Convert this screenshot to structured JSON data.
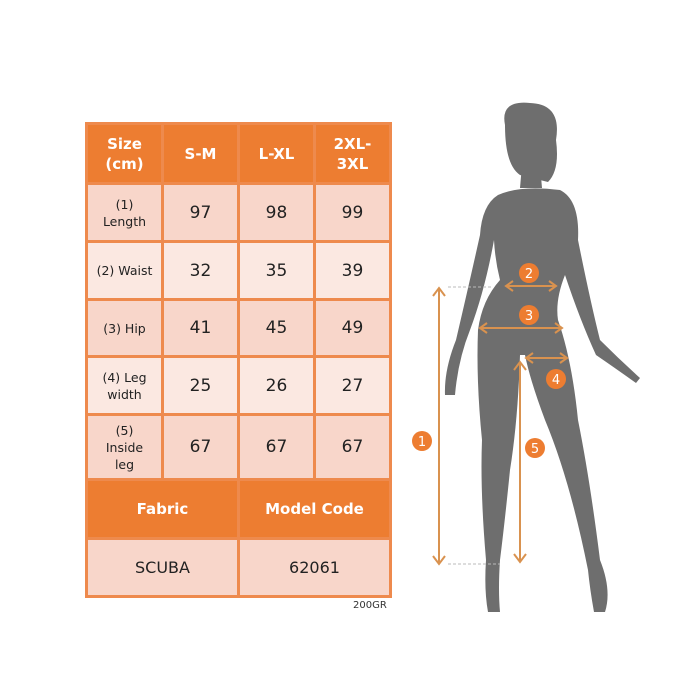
{
  "table": {
    "header": [
      "Size\n(cm)",
      "S-M",
      "L-XL",
      "2XL-\n3XL"
    ],
    "rows": [
      {
        "label": "(1)\nLength",
        "values": [
          "97",
          "98",
          "99"
        ]
      },
      {
        "label": "(2) Waist",
        "values": [
          "32",
          "35",
          "39"
        ]
      },
      {
        "label": "(3) Hip",
        "values": [
          "41",
          "45",
          "49"
        ]
      },
      {
        "label": "(4) Leg\nwidth",
        "values": [
          "25",
          "26",
          "27"
        ]
      },
      {
        "label": "(5)\nInside\nleg",
        "values": [
          "67",
          "67",
          "67"
        ]
      }
    ],
    "fabric_header": "Fabric",
    "model_header": "Model Code",
    "fabric_value": "SCUBA",
    "model_value": "62061"
  },
  "note": "200GR",
  "figure": {
    "markers": [
      "1",
      "2",
      "3",
      "4",
      "5"
    ],
    "colors": {
      "accent": "#ed7d31",
      "silhouette": "#6e6e6e",
      "arrow": "#d9924f"
    }
  }
}
